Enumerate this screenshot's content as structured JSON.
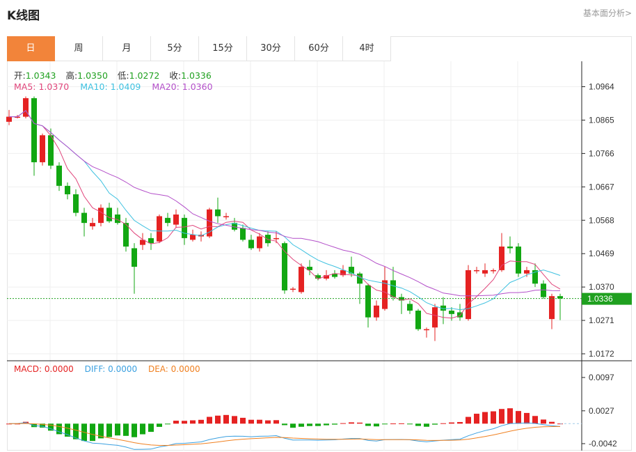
{
  "title": "K线图",
  "fundamental_link": "基本面分析>",
  "tabs": [
    "日",
    "周",
    "月",
    "5分",
    "15分",
    "30分",
    "60分",
    "4时"
  ],
  "active_tab": 0,
  "ohlc": {
    "open_label": "开:",
    "open": "1.0343",
    "high_label": "高:",
    "high": "1.0350",
    "low_label": "低:",
    "low": "1.0272",
    "close_label": "收:",
    "close": "1.0336"
  },
  "ma": {
    "ma5": "MA5: 1.0370",
    "ma10": "MA10: 1.0409",
    "ma20": "MA20: 1.0360"
  },
  "macd": {
    "macd": "MACD: 0.0000",
    "diff": "DIFF: 0.0000",
    "dea": "DEA: 0.0000"
  },
  "colors": {
    "up": "#e52222",
    "down": "#12a712",
    "ma5": "#e0457b",
    "ma10": "#3ec1e0",
    "ma20": "#b34fc9",
    "diff": "#3aa0e0",
    "dea": "#f08020",
    "accent": "#f2843a",
    "current": "#1fa01f"
  },
  "chart_data": {
    "type": "candlestick",
    "price_axis_ticks": [
      "1.0964",
      "1.0865",
      "1.0766",
      "1.0667",
      "1.0568",
      "1.0469",
      "1.0370",
      "1.0271",
      "1.0172"
    ],
    "current_price": "1.0336",
    "macd_axis_ticks": [
      "0.0097",
      "0.0027",
      "-0.0042"
    ],
    "candles": [
      [
        1.086,
        1.0875,
        1.0895,
        1.085
      ],
      [
        1.0875,
        1.0875,
        1.088,
        1.087
      ],
      [
        1.0875,
        1.093,
        1.0935,
        1.087
      ],
      [
        1.093,
        1.074,
        1.0935,
        1.07
      ],
      [
        1.074,
        1.082,
        1.0825,
        1.073
      ],
      [
        1.082,
        1.073,
        1.084,
        1.072
      ],
      [
        1.073,
        1.067,
        1.074,
        1.0655
      ],
      [
        1.067,
        1.0645,
        1.068,
        1.063
      ],
      [
        1.0645,
        1.059,
        1.066,
        1.058
      ],
      [
        1.059,
        1.056,
        1.0605,
        1.052
      ],
      [
        1.055,
        1.056,
        1.0575,
        1.054
      ],
      [
        1.056,
        1.0605,
        1.0615,
        1.055
      ],
      [
        1.0605,
        1.0565,
        1.062,
        1.056
      ],
      [
        1.0585,
        1.056,
        1.0605,
        1.0555
      ],
      [
        1.056,
        1.049,
        1.0575,
        1.0475
      ],
      [
        1.0485,
        1.043,
        1.05,
        1.035
      ],
      [
        1.0495,
        1.051,
        1.053,
        1.048
      ],
      [
        1.0515,
        1.05,
        1.053,
        1.048
      ],
      [
        1.0505,
        1.058,
        1.0585,
        1.05
      ],
      [
        1.0575,
        1.056,
        1.059,
        1.055
      ],
      [
        1.0555,
        1.0585,
        1.06,
        1.0545
      ],
      [
        1.0575,
        1.0515,
        1.0585,
        1.0495
      ],
      [
        1.051,
        1.0525,
        1.054,
        1.0505
      ],
      [
        1.052,
        1.0525,
        1.0535,
        1.0505
      ],
      [
        1.052,
        1.06,
        1.0605,
        1.0515
      ],
      [
        1.06,
        1.058,
        1.0635,
        1.056
      ],
      [
        1.058,
        1.058,
        1.059,
        1.057
      ],
      [
        1.056,
        1.054,
        1.0575,
        1.0535
      ],
      [
        1.0545,
        1.051,
        1.0555,
        1.0505
      ],
      [
        1.051,
        1.0485,
        1.0525,
        1.048
      ],
      [
        1.0485,
        1.052,
        1.053,
        1.0475
      ],
      [
        1.0525,
        1.05,
        1.0535,
        1.049
      ],
      [
        1.0515,
        1.0515,
        1.0535,
        1.05
      ],
      [
        1.05,
        1.036,
        1.0505,
        1.035
      ],
      [
        1.0365,
        1.0365,
        1.037,
        1.0355
      ],
      [
        1.0355,
        1.043,
        1.044,
        1.035
      ],
      [
        1.043,
        1.042,
        1.045,
        1.0405
      ],
      [
        1.0405,
        1.0395,
        1.041,
        1.039
      ],
      [
        1.0395,
        1.0405,
        1.042,
        1.039
      ],
      [
        1.041,
        1.04,
        1.042,
        1.0395
      ],
      [
        1.0405,
        1.042,
        1.0435,
        1.04
      ],
      [
        1.043,
        1.041,
        1.046,
        1.04
      ],
      [
        1.041,
        1.038,
        1.0415,
        1.032
      ],
      [
        1.0375,
        1.028,
        1.038,
        1.025
      ],
      [
        1.028,
        1.0315,
        1.033,
        1.027
      ],
      [
        1.0305,
        1.039,
        1.043,
        1.03
      ],
      [
        1.039,
        1.034,
        1.043,
        1.033
      ],
      [
        1.034,
        1.033,
        1.035,
        1.029
      ],
      [
        1.032,
        1.03,
        1.033,
        1.029
      ],
      [
        1.03,
        1.0245,
        1.0305,
        1.024
      ],
      [
        1.0245,
        1.0245,
        1.025,
        1.022
      ],
      [
        1.025,
        1.031,
        1.032,
        1.021
      ],
      [
        1.0315,
        1.03,
        1.034,
        1.026
      ],
      [
        1.03,
        1.029,
        1.031,
        1.027
      ],
      [
        1.0295,
        1.028,
        1.032,
        1.027
      ],
      [
        1.0275,
        1.042,
        1.0435,
        1.027
      ],
      [
        1.042,
        1.042,
        1.043,
        1.041
      ],
      [
        1.041,
        1.042,
        1.044,
        1.04
      ],
      [
        1.042,
        1.042,
        1.0425,
        1.041
      ],
      [
        1.042,
        1.049,
        1.053,
        1.0415
      ],
      [
        1.049,
        1.0485,
        1.052,
        1.047
      ],
      [
        1.049,
        1.041,
        1.05,
        1.04
      ],
      [
        1.041,
        1.042,
        1.043,
        1.04
      ],
      [
        1.042,
        1.038,
        1.044,
        1.037
      ],
      [
        1.038,
        1.034,
        1.039,
        1.0335
      ],
      [
        1.0275,
        1.0343,
        1.035,
        1.0245
      ],
      [
        1.0343,
        1.0336,
        1.035,
        1.0272
      ]
    ]
  }
}
